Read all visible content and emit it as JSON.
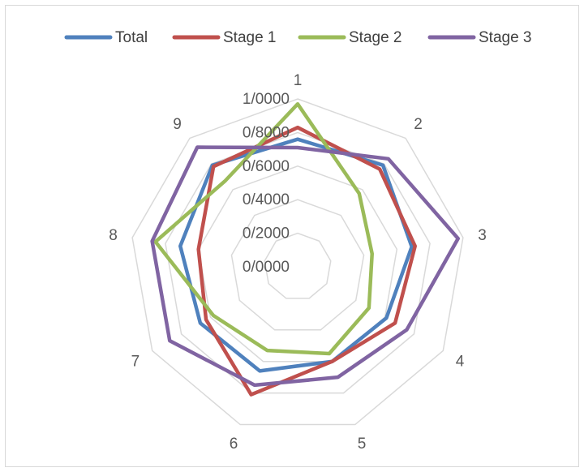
{
  "chart_data": {
    "type": "radar",
    "title": "",
    "categories": [
      "1",
      "2",
      "3",
      "4",
      "5",
      "6",
      "7",
      "8",
      "9"
    ],
    "tick_labels": [
      "0/0000",
      "0/2000",
      "0/4000",
      "0/6000",
      "0/8000",
      "1/0000"
    ],
    "range": [
      0,
      1
    ],
    "grid": true,
    "legend_position": "top",
    "series": [
      {
        "name": "Total",
        "color": "#4f81bd",
        "values": [
          0.76,
          0.79,
          0.69,
          0.61,
          0.6,
          0.66,
          0.67,
          0.71,
          0.79
        ]
      },
      {
        "name": "Stage 1",
        "color": "#c0504d",
        "values": [
          0.83,
          0.76,
          0.71,
          0.67,
          0.6,
          0.81,
          0.63,
          0.6,
          0.78
        ]
      },
      {
        "name": "Stage 2",
        "color": "#9bbb59",
        "values": [
          0.97,
          0.57,
          0.45,
          0.49,
          0.55,
          0.53,
          0.58,
          0.86,
          0.67
        ]
      },
      {
        "name": "Stage 3",
        "color": "#8064a2",
        "values": [
          0.71,
          0.84,
          0.97,
          0.75,
          0.7,
          0.75,
          0.88,
          0.88,
          0.93
        ]
      }
    ]
  }
}
